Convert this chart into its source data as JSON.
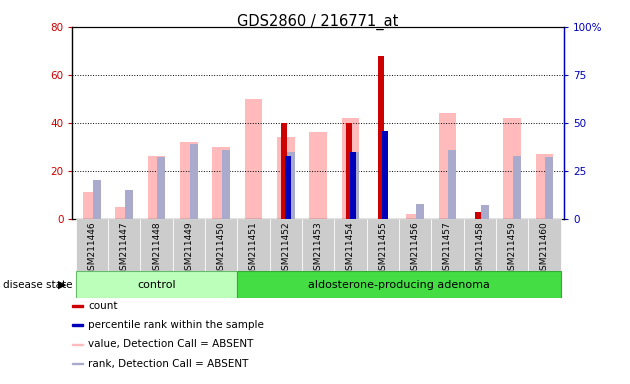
{
  "title": "GDS2860 / 216771_at",
  "samples": [
    "GSM211446",
    "GSM211447",
    "GSM211448",
    "GSM211449",
    "GSM211450",
    "GSM211451",
    "GSM211452",
    "GSM211453",
    "GSM211454",
    "GSM211455",
    "GSM211456",
    "GSM211457",
    "GSM211458",
    "GSM211459",
    "GSM211460"
  ],
  "control_count": 5,
  "count": [
    0,
    0,
    0,
    0,
    0,
    0,
    40,
    0,
    40,
    68,
    0,
    0,
    3,
    0,
    0
  ],
  "percentile": [
    0,
    0,
    0,
    0,
    0,
    0,
    33,
    0,
    35,
    46,
    0,
    0,
    0,
    0,
    0
  ],
  "value_absent": [
    11,
    5,
    26,
    32,
    30,
    50,
    34,
    36,
    42,
    0,
    2,
    44,
    0,
    42,
    27
  ],
  "rank_absent": [
    20,
    15,
    32,
    39,
    36,
    0,
    35,
    0,
    35,
    0,
    8,
    36,
    7,
    33,
    32
  ],
  "ylim_left": [
    0,
    80
  ],
  "ylim_right": [
    0,
    100
  ],
  "yticks_left": [
    0,
    20,
    40,
    60,
    80
  ],
  "yticks_right": [
    0,
    25,
    50,
    75,
    100
  ],
  "color_count": "#cc0000",
  "color_percentile": "#0000bb",
  "color_value_absent": "#ffbbbb",
  "color_rank_absent": "#aaaacc",
  "color_control_bg_light": "#ccffcc",
  "color_adenoma_bg": "#55dd55",
  "ylabel_left_color": "#cc0000",
  "ylabel_right_color": "#0000bb",
  "group_label_control": "control",
  "group_label_adenoma": "aldosterone-producing adenoma",
  "disease_state_label": "disease state"
}
